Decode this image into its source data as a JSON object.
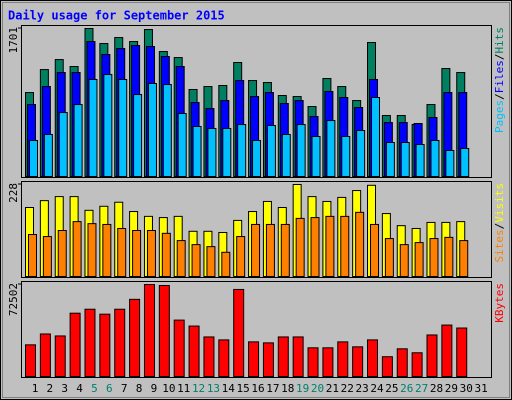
{
  "chart_data": {
    "type": "bar",
    "title": "Daily usage for September 2015",
    "title_color": "#0000ff",
    "legend_separator": "/",
    "categories": [
      "1",
      "2",
      "3",
      "4",
      "5",
      "6",
      "7",
      "8",
      "9",
      "10",
      "11",
      "12",
      "13",
      "14",
      "15",
      "16",
      "17",
      "18",
      "19",
      "20",
      "21",
      "22",
      "23",
      "24",
      "25",
      "26",
      "27",
      "28",
      "29",
      "30",
      "31"
    ],
    "category_colors": [
      "#000000",
      "#000000",
      "#000000",
      "#000000",
      "#00806c",
      "#00806c",
      "#000000",
      "#000000",
      "#000000",
      "#000000",
      "#000000",
      "#00806c",
      "#00806c",
      "#000000",
      "#000000",
      "#000000",
      "#000000",
      "#000000",
      "#00806c",
      "#00806c",
      "#000000",
      "#000000",
      "#000000",
      "#000000",
      "#000000",
      "#00806c",
      "#00806c",
      "#000000",
      "#000000",
      "#000000",
      "#000000"
    ],
    "panels": [
      {
        "ylim": [
          0,
          1701
        ],
        "yticks": [
          1701
        ],
        "series": [
          {
            "name": "Hits",
            "color": "#008060",
            "values": [
              965,
              1229,
              1344,
              1264,
              1701,
              1528,
              1597,
              1551,
              1689,
              1436,
              1367,
              1000,
              1034,
              1046,
              1310,
              1103,
              1080,
              931,
              919,
              804,
              1126,
              1034,
              873,
              1540,
              701,
              701,
              598,
              827,
              1241,
              1195,
              null
            ]
          },
          {
            "name": "Files",
            "color": "#0000ff",
            "values": [
              827,
              1034,
              1195,
              1195,
              1551,
              1402,
              1471,
              1505,
              1494,
              1379,
              1264,
              850,
              781,
              873,
              1103,
              919,
              965,
              839,
              873,
              689,
              977,
              908,
              793,
              1115,
              620,
              620,
              609,
              678,
              965,
              965,
              null
            ]
          },
          {
            "name": "Pages",
            "color": "#00c0ff",
            "values": [
              414,
              483,
              735,
              827,
              1115,
              1172,
              1115,
              942,
              1069,
              1057,
              724,
              575,
              552,
              552,
              597,
              414,
              586,
              483,
              597,
              460,
              643,
              460,
              529,
              908,
              391,
              391,
              368,
              414,
              299,
              322,
              null
            ]
          }
        ]
      },
      {
        "ylim": [
          0,
          228
        ],
        "yticks": [
          228
        ],
        "series": [
          {
            "name": "Visits",
            "color": "#ffff00",
            "values": [
              171,
              188,
              198,
              198,
              164,
              174,
              184,
              161,
              149,
              146,
              149,
              112,
              112,
              109,
              139,
              161,
              186,
              171,
              228,
              198,
              186,
              196,
              213,
              226,
              156,
              126,
              119,
              134,
              134,
              136,
              null
            ]
          },
          {
            "name": "Sites",
            "color": "#ff8000",
            "values": [
              104,
              99,
              114,
              136,
              131,
              129,
              119,
              114,
              114,
              107,
              89,
              79,
              74,
              60,
              99,
              129,
              129,
              129,
              144,
              146,
              149,
              149,
              159,
              129,
              94,
              79,
              84,
              94,
              97,
              89,
              null
            ]
          }
        ]
      },
      {
        "ylim": [
          0,
          72502
        ],
        "yticks": [
          72502
        ],
        "series": [
          {
            "name": "KBytes",
            "color": "#ff0000",
            "values": [
              24950,
              33520,
              31960,
              49890,
              53010,
              49110,
              53010,
              60810,
              72502,
              71720,
              44440,
              39760,
              31180,
              28850,
              68600,
              27290,
              26510,
              31180,
              31180,
              22610,
              22610,
              27290,
              23390,
              28850,
              15590,
              21830,
              18710,
              32740,
              40540,
              38200,
              null
            ]
          }
        ]
      }
    ]
  }
}
